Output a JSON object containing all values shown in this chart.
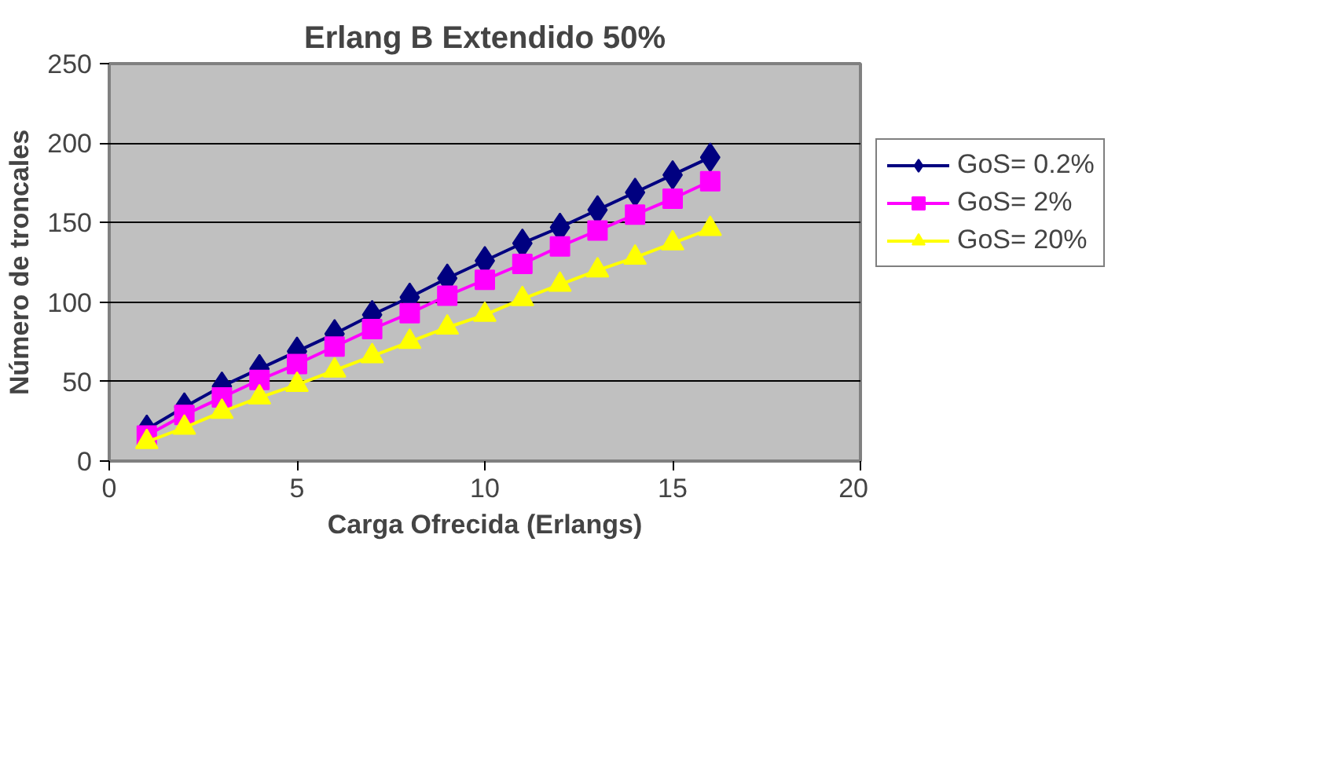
{
  "chart_data": {
    "type": "line",
    "title": "Erlang B Extendido 50%",
    "xlabel": "Carga Ofrecida (Erlangs)",
    "ylabel": "Número de troncales",
    "x": [
      1,
      2,
      3,
      4,
      5,
      6,
      7,
      8,
      9,
      10,
      11,
      12,
      13,
      14,
      15,
      16
    ],
    "series": [
      {
        "name": "GoS= 0.2%",
        "color": "#000080",
        "marker": "diamond",
        "values": [
          20,
          34,
          47,
          58,
          69,
          80,
          92,
          103,
          115,
          126,
          137,
          147,
          158,
          169,
          180,
          191
        ]
      },
      {
        "name": "GoS= 2%",
        "color": "#ff00ff",
        "marker": "square",
        "values": [
          16,
          29,
          40,
          51,
          61,
          72,
          83,
          93,
          104,
          114,
          124,
          135,
          145,
          155,
          165,
          176
        ]
      },
      {
        "name": "GoS= 20%",
        "color": "#ffff00",
        "marker": "triangle",
        "values": [
          12,
          21,
          31,
          40,
          48,
          57,
          66,
          75,
          84,
          92,
          102,
          111,
          120,
          128,
          137,
          146
        ]
      }
    ],
    "xlim": [
      0,
      20
    ],
    "xticks": [
      0,
      5,
      10,
      15,
      20
    ],
    "ylim": [
      0,
      250
    ],
    "yticks": [
      0,
      50,
      100,
      150,
      200,
      250
    ],
    "grid": "y",
    "legend": "right",
    "line_style": "solid"
  }
}
